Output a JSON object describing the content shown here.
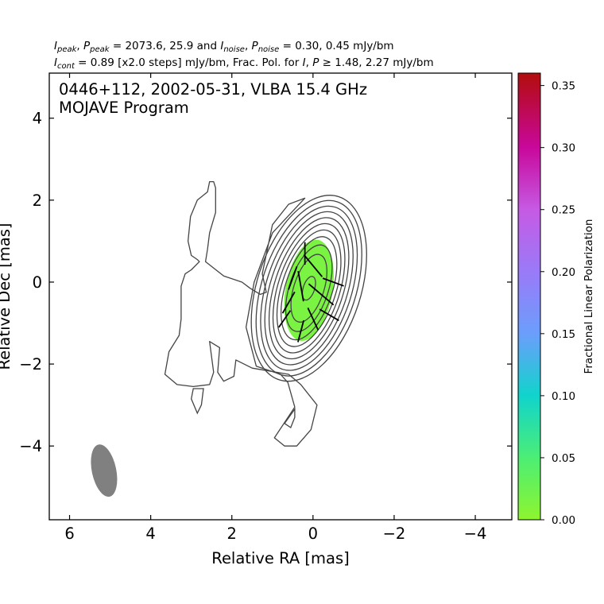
{
  "chart_data": {
    "type": "contour",
    "header": {
      "line1": {
        "segments": [
          {
            "t": "I",
            "i": true
          },
          {
            "t": "peak",
            "sub": true,
            "i": true
          },
          {
            "t": ", "
          },
          {
            "t": "P",
            "i": true
          },
          {
            "t": "peak",
            "sub": true,
            "i": true
          },
          {
            "t": " = 2073.6, 25.9 and "
          },
          {
            "t": "I",
            "i": true
          },
          {
            "t": "noise",
            "sub": true,
            "i": true
          },
          {
            "t": ", "
          },
          {
            "t": "P",
            "i": true
          },
          {
            "t": "noise",
            "sub": true,
            "i": true
          },
          {
            "t": " = 0.30, 0.45 mJy/bm"
          }
        ]
      },
      "line2": {
        "segments": [
          {
            "t": "I",
            "i": true
          },
          {
            "t": "cont",
            "sub": true,
            "i": true
          },
          {
            "t": " = 0.89 [x2.0 steps] mJy/bm, Frac. Pol. for "
          },
          {
            "t": "I",
            "i": true
          },
          {
            "t": ", "
          },
          {
            "t": "P",
            "i": true
          },
          {
            "t": " ≥ 1.48, 2.27 mJy/bm"
          }
        ]
      }
    },
    "title_lines": [
      "0446+112, 2002-05-31, VLBA 15.4 GHz",
      "MOJAVE Program"
    ],
    "xlabel": "Relative RA [mas]",
    "ylabel": "Relative Dec [mas]",
    "xlim": [
      6.5,
      -4.9
    ],
    "ylim": [
      -5.8,
      5.1
    ],
    "xticks": [
      6,
      4,
      2,
      0,
      -2,
      -4
    ],
    "yticks": [
      4,
      2,
      0,
      -2,
      -4
    ],
    "xticklabels": [
      "6",
      "4",
      "2",
      "0",
      "−2",
      "−4"
    ],
    "yticklabels": [
      "4",
      "2",
      "0",
      "−2",
      "−4"
    ],
    "core": {
      "x": 0.1,
      "y": -0.15,
      "pa_deg": 18
    },
    "contour_levels": [
      {
        "level": 0.89,
        "a": 1.28,
        "b": 2.35
      },
      {
        "level": 1.78,
        "a": 1.16,
        "b": 2.22
      },
      {
        "level": 3.56,
        "a": 1.05,
        "b": 2.08
      },
      {
        "level": 7.12,
        "a": 0.95,
        "b": 1.94
      },
      {
        "level": 14.24,
        "a": 0.85,
        "b": 1.79
      },
      {
        "level": 28.48,
        "a": 0.76,
        "b": 1.64
      },
      {
        "level": 56.96,
        "a": 0.67,
        "b": 1.48
      },
      {
        "level": 113.92,
        "a": 0.58,
        "b": 1.31
      },
      {
        "level": 227.84,
        "a": 0.48,
        "b": 1.1
      },
      {
        "level": 455.68,
        "a": 0.37,
        "b": 0.86
      },
      {
        "level": 911.36,
        "a": 0.14,
        "b": 0.3
      }
    ],
    "outer_contour": [
      [
        0.2,
        2.05
      ],
      [
        1.0,
        1.2
      ],
      [
        1.45,
        0.0
      ],
      [
        1.65,
        -1.1
      ],
      [
        1.4,
        -2.05
      ],
      [
        0.8,
        -2.25
      ],
      [
        0.62,
        -2.45
      ],
      [
        0.45,
        -3.05
      ],
      [
        0.95,
        -3.8
      ],
      [
        0.7,
        -4.0
      ],
      [
        0.4,
        -4.0
      ],
      [
        0.05,
        -3.6
      ],
      [
        -0.1,
        -3.0
      ],
      [
        0.3,
        -2.5
      ],
      [
        0.6,
        -2.25
      ],
      [
        1.5,
        -2.1
      ],
      [
        1.9,
        -1.9
      ],
      [
        1.95,
        -2.3
      ],
      [
        2.2,
        -2.42
      ],
      [
        2.35,
        -2.2
      ],
      [
        2.3,
        -1.6
      ],
      [
        2.55,
        -1.45
      ],
      [
        2.45,
        -2.2
      ],
      [
        2.55,
        -2.5
      ],
      [
        2.95,
        -2.55
      ],
      [
        3.35,
        -2.5
      ],
      [
        3.65,
        -2.25
      ],
      [
        3.55,
        -1.7
      ],
      [
        3.3,
        -1.3
      ],
      [
        3.25,
        -0.9
      ],
      [
        3.25,
        -0.1
      ],
      [
        3.15,
        0.2
      ],
      [
        3.0,
        0.3
      ],
      [
        2.8,
        0.5
      ],
      [
        2.85,
        0.55
      ],
      [
        3.0,
        0.65
      ],
      [
        3.08,
        1.0
      ],
      [
        3.02,
        1.6
      ],
      [
        2.85,
        2.0
      ],
      [
        2.6,
        2.2
      ],
      [
        2.55,
        2.45
      ],
      [
        2.45,
        2.45
      ],
      [
        2.4,
        2.3
      ],
      [
        2.4,
        1.7
      ],
      [
        2.55,
        1.2
      ],
      [
        2.6,
        0.8
      ],
      [
        2.65,
        0.5
      ],
      [
        2.2,
        0.15
      ],
      [
        1.75,
        0.0
      ],
      [
        1.55,
        -0.15
      ],
      [
        1.3,
        -0.3
      ],
      [
        1.15,
        -0.25
      ],
      [
        1.25,
        0.2
      ],
      [
        1.0,
        1.4
      ],
      [
        0.6,
        1.9
      ]
    ],
    "islands": [
      [
        [
          2.95,
          -2.6
        ],
        [
          2.7,
          -2.6
        ],
        [
          2.75,
          -3.0
        ],
        [
          2.85,
          -3.2
        ],
        [
          3.0,
          -2.85
        ]
      ],
      [
        [
          0.45,
          -3.1
        ],
        [
          0.7,
          -3.45
        ],
        [
          0.55,
          -3.55
        ],
        [
          0.45,
          -3.3
        ]
      ]
    ],
    "polarization_region": {
      "x": 0.1,
      "y": -0.2,
      "a": 0.58,
      "b": 1.25,
      "pa_deg": 10,
      "frac_pol": 0.015
    },
    "evpa_vectors": [
      {
        "x": -0.2,
        "y": -0.3,
        "len": 0.8,
        "angle_deg": 140
      },
      {
        "x": 0.3,
        "y": -0.1,
        "len": 0.75,
        "angle_deg": 100
      },
      {
        "x": 0.0,
        "y": 0.4,
        "len": 0.7,
        "angle_deg": 130
      },
      {
        "x": 0.5,
        "y": 0.1,
        "len": 0.6,
        "angle_deg": 70
      },
      {
        "x": 0.6,
        "y": -0.5,
        "len": 0.6,
        "angle_deg": 60
      },
      {
        "x": -0.4,
        "y": -0.8,
        "len": 0.55,
        "angle_deg": 150
      },
      {
        "x": -0.5,
        "y": 0.0,
        "len": 0.55,
        "angle_deg": 160
      },
      {
        "x": 0.0,
        "y": -0.9,
        "len": 0.6,
        "angle_deg": 115
      },
      {
        "x": 0.3,
        "y": -1.2,
        "len": 0.55,
        "angle_deg": 75
      },
      {
        "x": 0.7,
        "y": -0.9,
        "len": 0.5,
        "angle_deg": 55
      },
      {
        "x": 0.2,
        "y": 0.7,
        "len": 0.55,
        "angle_deg": 90
      }
    ],
    "beam": {
      "x": 5.15,
      "y": -4.6,
      "major_mas": 1.3,
      "minor_mas": 0.6,
      "pa_deg": -12,
      "color": "#808080"
    },
    "colorbar": {
      "label": "Fractional Linear Polarization",
      "min": 0.0,
      "max": 0.36,
      "ticks": [
        0.0,
        0.05,
        0.1,
        0.15,
        0.2,
        0.25,
        0.3,
        0.35
      ],
      "ticklabels": [
        "0.00",
        "0.05",
        "0.10",
        "0.15",
        "0.20",
        "0.25",
        "0.30",
        "0.35"
      ],
      "stops": [
        {
          "v": 0.0,
          "color": "#8ef52e"
        },
        {
          "v": 0.05,
          "color": "#4cee75"
        },
        {
          "v": 0.1,
          "color": "#10d4cc"
        },
        {
          "v": 0.15,
          "color": "#6b9efc"
        },
        {
          "v": 0.2,
          "color": "#9a7af8"
        },
        {
          "v": 0.25,
          "color": "#c65ae4"
        },
        {
          "v": 0.3,
          "color": "#c8089b"
        },
        {
          "v": 0.36,
          "color": "#b30c0c"
        }
      ]
    },
    "contour_color": "#444444",
    "vector_color": "#000000",
    "grid": false
  }
}
